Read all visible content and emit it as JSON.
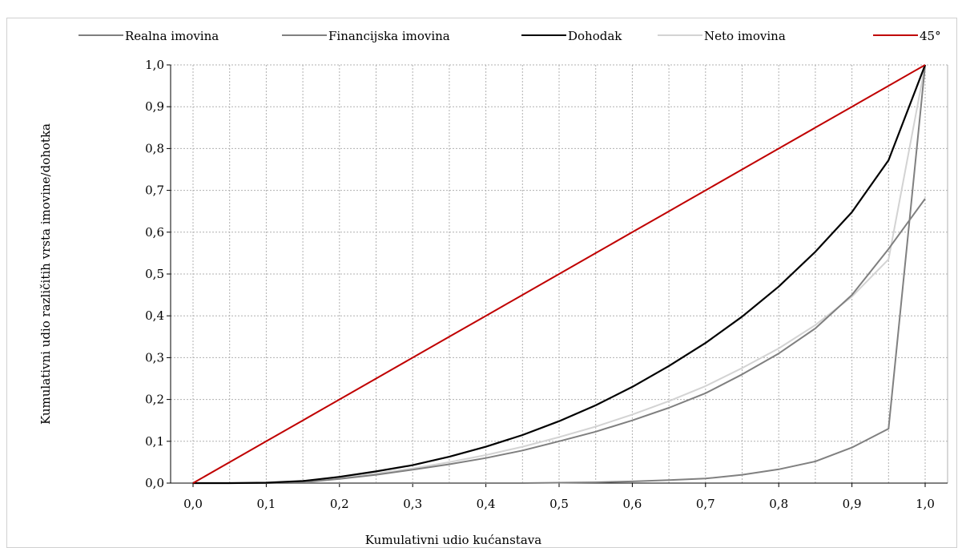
{
  "chart_data": {
    "type": "line",
    "title": "",
    "xlabel": "Kumulativni udio kućanstava",
    "ylabel": "Kumulativni udio različitih vrsta imovine/dohotka",
    "xlim": [
      0,
      1
    ],
    "ylim": [
      0,
      1
    ],
    "grid": true,
    "legend_position": "top",
    "x_ticks": [
      "0,0",
      "0,1",
      "0,2",
      "0,3",
      "0,4",
      "0,5",
      "0,6",
      "0,7",
      "0,8",
      "0,9",
      "1,0"
    ],
    "y_ticks": [
      "0,0",
      "0,1",
      "0,2",
      "0,3",
      "0,4",
      "0,5",
      "0,6",
      "0,7",
      "0,8",
      "0,9",
      "1,0"
    ],
    "x": [
      0.0,
      0.05,
      0.1,
      0.15,
      0.2,
      0.25,
      0.3,
      0.35,
      0.4,
      0.45,
      0.5,
      0.55,
      0.6,
      0.65,
      0.7,
      0.75,
      0.8,
      0.85,
      0.9,
      0.95,
      1.0
    ],
    "series": [
      {
        "name": "Realna imovina",
        "color": "#7f7f7f",
        "values": [
          0,
          0,
          0,
          0.002,
          0.01,
          0.02,
          0.032,
          0.045,
          0.06,
          0.078,
          0.1,
          0.123,
          0.15,
          0.18,
          0.215,
          0.26,
          0.31,
          0.37,
          0.45,
          0.56,
          0.68
        ]
      },
      {
        "name": "Financijska imovina",
        "color": "#808080",
        "values": [
          0,
          0,
          0,
          0,
          0,
          0,
          0,
          0,
          0,
          0,
          0.001,
          0.002,
          0.004,
          0.007,
          0.011,
          0.02,
          0.033,
          0.052,
          0.085,
          0.13,
          1.0
        ]
      },
      {
        "name": "Dohodak",
        "color": "#000000",
        "values": [
          0,
          0,
          0.001,
          0.005,
          0.015,
          0.028,
          0.043,
          0.063,
          0.087,
          0.115,
          0.148,
          0.186,
          0.23,
          0.28,
          0.335,
          0.398,
          0.47,
          0.553,
          0.648,
          0.772,
          1.0
        ]
      },
      {
        "name": "Neto imovina",
        "color": "#d3d3d3",
        "values": [
          0,
          0,
          0,
          0.003,
          0.012,
          0.023,
          0.035,
          0.05,
          0.067,
          0.087,
          0.11,
          0.135,
          0.164,
          0.196,
          0.232,
          0.275,
          0.322,
          0.378,
          0.446,
          0.535,
          1.0
        ]
      },
      {
        "name": "45°",
        "color": "#c00000",
        "values": [
          0,
          0.05,
          0.1,
          0.15,
          0.2,
          0.25,
          0.3,
          0.35,
          0.4,
          0.45,
          0.5,
          0.55,
          0.6,
          0.65,
          0.7,
          0.75,
          0.8,
          0.85,
          0.9,
          0.95,
          1.0
        ]
      }
    ]
  }
}
